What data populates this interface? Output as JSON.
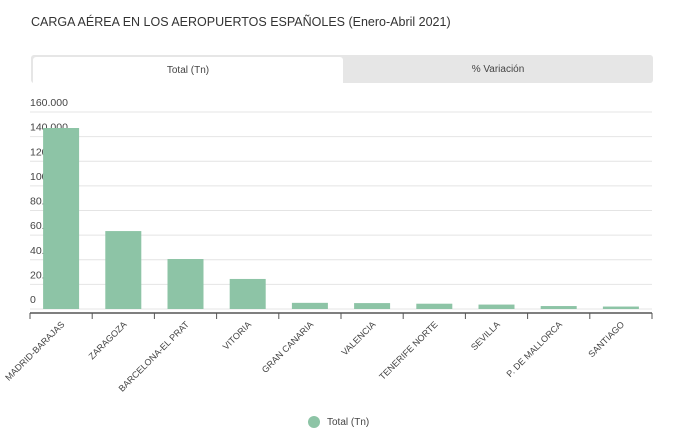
{
  "header": {
    "title": "CARGA AÉREA EN LOS AEROPUERTOS ESPAÑOLES (Enero-Abril 2021)"
  },
  "tabs": [
    {
      "label": "Total (Tn)",
      "active": true
    },
    {
      "label": "% Variación",
      "active": false
    }
  ],
  "colors": {
    "bar": "#8dc4a6",
    "grid": "#e4e4e4",
    "axis": "#555555"
  },
  "chart_data": {
    "type": "bar",
    "title": "CARGA AÉREA EN LOS AEROPUERTOS ESPAÑOLES (Enero-Abril 2021)",
    "xlabel": "",
    "ylabel": "",
    "ylim": [
      0,
      160000
    ],
    "yticks": [
      0,
      20000,
      40000,
      60000,
      80000,
      100000,
      120000,
      140000,
      160000
    ],
    "ytick_labels": [
      "0",
      "20.000",
      "40.000",
      "60.000",
      "80.000",
      "100.000",
      "120.000",
      "140.000",
      "160.000"
    ],
    "categories": [
      "MADRID-BARAJAS",
      "ZARAGOZA",
      "BARCELONA-EL PRAT",
      "VITORIA",
      "GRAN CANARIA",
      "VALENCIA",
      "TENERIFE NORTE",
      "SEVILLA",
      "P. DE MALLORCA",
      "SANTIAGO"
    ],
    "series": [
      {
        "name": "Total (Tn)",
        "values": [
          147000,
          63300,
          40600,
          24400,
          5000,
          4800,
          4300,
          3600,
          2400,
          2000
        ]
      }
    ],
    "grid": true,
    "legend": "bottom-center"
  }
}
